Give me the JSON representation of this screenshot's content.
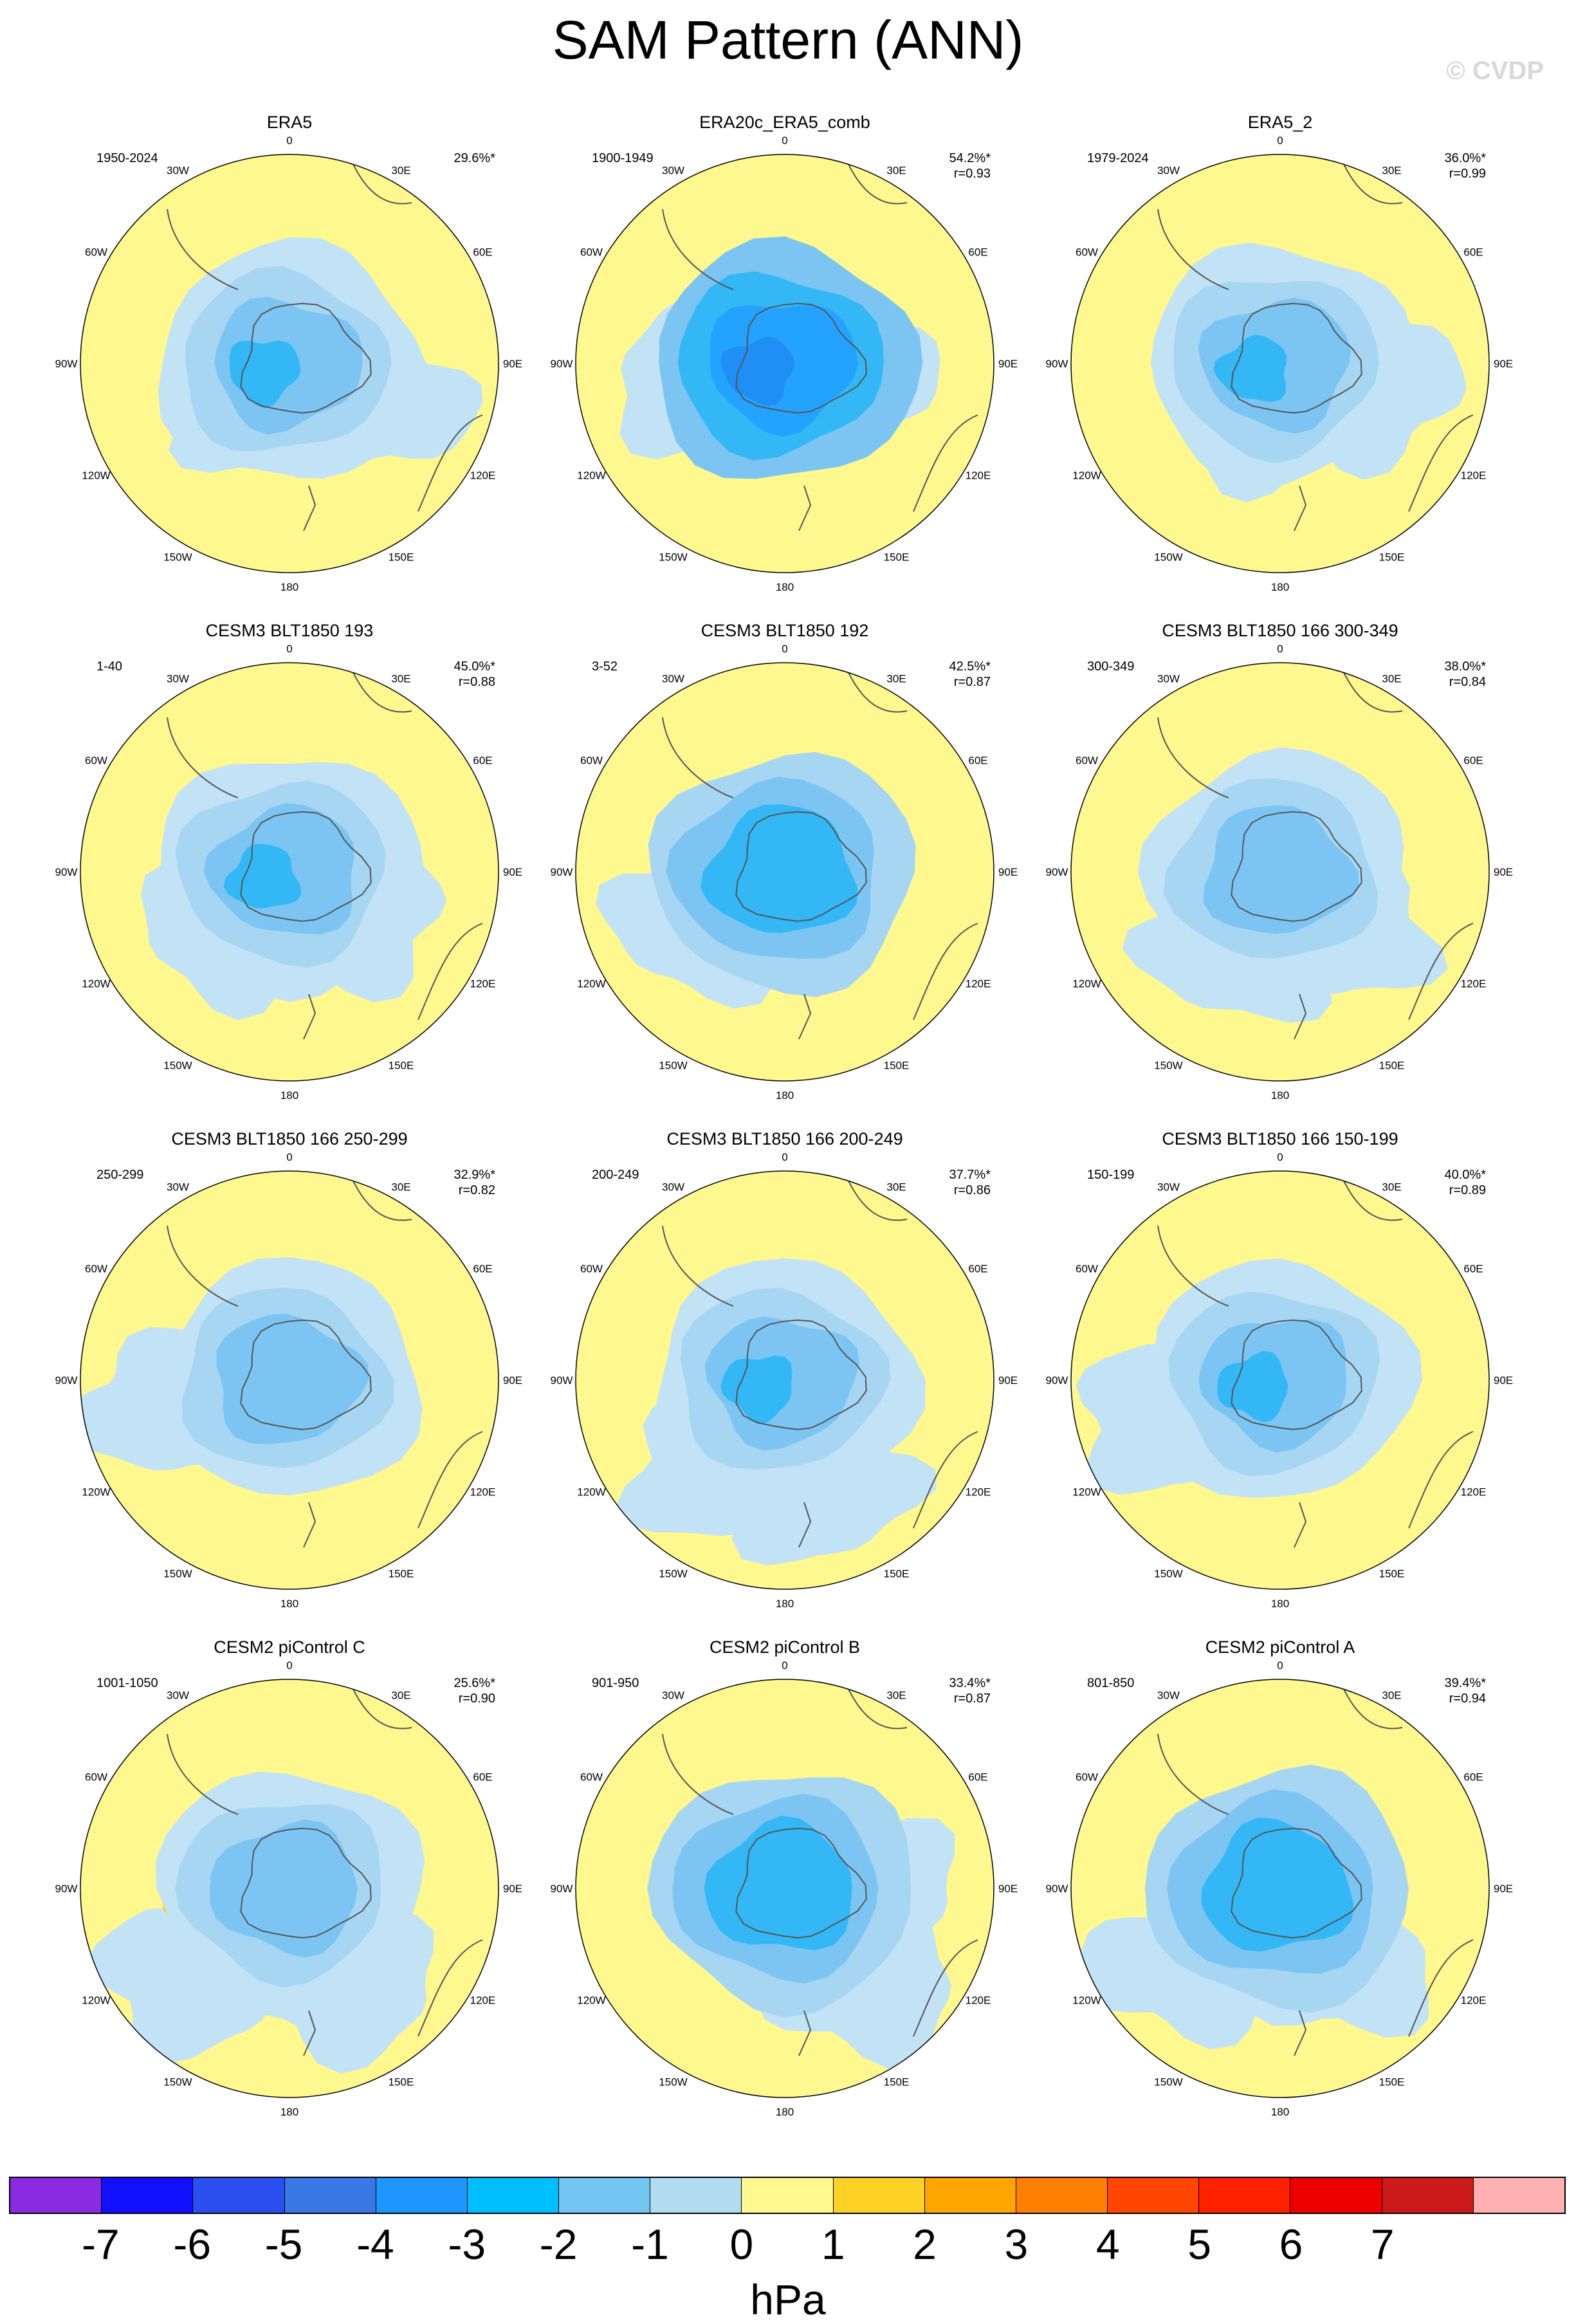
{
  "title": "SAM Pattern (ANN)",
  "watermark": "© CVDP",
  "lon_labels": [
    "0",
    "30E",
    "60E",
    "90E",
    "120E",
    "150E",
    "180",
    "150W",
    "120W",
    "90W",
    "60W",
    "30W"
  ],
  "panels": [
    {
      "title": "ERA5",
      "years": "1950-2024",
      "pct": "29.6%*",
      "r": "",
      "core": "#7cc5f2",
      "mid": "#a6d6f2",
      "outer": "#c2e2f5",
      "deep": "#33b8f5",
      "pos": [
        [
          -95,
          -30,
          1
        ]
      ],
      "neg_rim": [
        [
          -20,
          -75,
          "#c2e2f5"
        ],
        [
          130,
          -60,
          "#c2e2f5"
        ]
      ]
    },
    {
      "title": "ERA20c_ERA5_comb",
      "years": "1900-1949",
      "pct": "54.2%*",
      "r": "r=0.93",
      "core": "#23a3ff",
      "mid": "#33b8f5",
      "outer": "#7cc5f2",
      "deep": "#1f8ff5",
      "pos": [],
      "neg_rim": [
        [
          -120,
          -30,
          "#c2e2f5"
        ],
        [
          80,
          -20,
          "#c2e2f5"
        ]
      ]
    },
    {
      "title": "ERA5_2",
      "years": "1979-2024",
      "pct": "36.0%*",
      "r": "r=0.99",
      "core": "#7cc5f2",
      "mid": "#a6d6f2",
      "outer": "#c2e2f5",
      "deep": "#33b8f5",
      "pos": [
        [
          -95,
          -30,
          1
        ]
      ],
      "neg_rim": [
        [
          -10,
          -80,
          "#c2e2f5"
        ],
        [
          130,
          -40,
          "#c2e2f5"
        ]
      ]
    },
    {
      "title": "CESM3 BLT1850 193",
      "years": "1-40",
      "pct": "45.0%*",
      "r": "r=0.88",
      "core": "#7cc5f2",
      "mid": "#a6d6f2",
      "outer": "#c2e2f5",
      "deep": "#33b8f5",
      "pos": [
        [
          -100,
          -20,
          1
        ],
        [
          90,
          10,
          1
        ]
      ],
      "neg_rim": [
        [
          -80,
          -90,
          "#c2e2f5"
        ],
        [
          90,
          -70,
          "#c2e2f5"
        ]
      ]
    },
    {
      "title": "CESM3 BLT1850 192",
      "years": "3-52",
      "pct": "42.5%*",
      "r": "r=0.87",
      "core": "#33b8f5",
      "mid": "#7cc5f2",
      "outer": "#a6d6f2",
      "deep": "#33b8f5",
      "pos": [],
      "neg_rim": [
        [
          -120,
          -80,
          "#c2e2f5"
        ]
      ]
    },
    {
      "title": "CESM3 BLT1850 166 300-349",
      "years": "300-349",
      "pct": "38.0%*",
      "r": "r=0.84",
      "core": "#7cc5f2",
      "mid": "#a6d6f2",
      "outer": "#c2e2f5",
      "deep": "#7cc5f2",
      "pos": [
        [
          80,
          15,
          1
        ]
      ],
      "neg_rim": [
        [
          -60,
          -120,
          "#c2e2f5"
        ],
        [
          90,
          -90,
          "#c2e2f5"
        ]
      ]
    },
    {
      "title": "CESM3 BLT1850 166 250-299",
      "years": "250-299",
      "pct": "32.9%*",
      "r": "r=0.82",
      "core": "#7cc5f2",
      "mid": "#a6d6f2",
      "outer": "#c2e2f5",
      "deep": "#7cc5f2",
      "pos": [],
      "neg_rim": [
        [
          -180,
          -40,
          "#c2e2f5"
        ]
      ]
    },
    {
      "title": "CESM3 BLT1850 166 200-249",
      "years": "200-249",
      "pct": "37.7%*",
      "r": "r=0.86",
      "core": "#7cc5f2",
      "mid": "#a6d6f2",
      "outer": "#c2e2f5",
      "deep": "#33b8f5",
      "pos": [
        [
          85,
          15,
          1
        ]
      ],
      "neg_rim": [
        [
          -100,
          -140,
          "#c2e2f5"
        ],
        [
          50,
          -170,
          "#c2e2f5"
        ]
      ]
    },
    {
      "title": "CESM3 BLT1850 166 150-199",
      "years": "150-199",
      "pct": "40.0%*",
      "r": "r=0.89",
      "core": "#7cc5f2",
      "mid": "#a6d6f2",
      "outer": "#c2e2f5",
      "deep": "#33b8f5",
      "pos": [
        [
          95,
          10,
          1
        ]
      ],
      "neg_rim": [
        [
          -170,
          -60,
          "#c2e2f5"
        ]
      ]
    },
    {
      "title": "CESM2 piControl C",
      "years": "1001-1050",
      "pct": "25.6%*",
      "r": "r=0.90",
      "core": "#7cc5f2",
      "mid": "#a6d6f2",
      "outer": "#c2e2f5",
      "deep": "#7cc5f2",
      "pos": [
        [
          -140,
          -30,
          2
        ],
        [
          -70,
          -80,
          2
        ],
        [
          50,
          -50,
          1
        ]
      ],
      "neg_rim": [
        [
          -150,
          -140,
          "#c2e2f5"
        ],
        [
          80,
          -150,
          "#c2e2f5"
        ]
      ]
    },
    {
      "title": "CESM2 piControl B",
      "years": "901-950",
      "pct": "33.4%*",
      "r": "r=0.87",
      "core": "#33b8f5",
      "mid": "#7cc5f2",
      "outer": "#a6d6f2",
      "deep": "#33b8f5",
      "pos": [
        [
          -130,
          -40,
          2
        ],
        [
          -20,
          -100,
          2
        ]
      ],
      "neg_rim": [
        [
          120,
          0,
          "#c2e2f5"
        ],
        [
          120,
          -150,
          "#c2e2f5"
        ]
      ]
    },
    {
      "title": "CESM2 piControl A",
      "years": "801-850",
      "pct": "39.4%*",
      "r": "r=0.94",
      "core": "#33b8f5",
      "mid": "#7cc5f2",
      "outer": "#a6d6f2",
      "deep": "#33b8f5",
      "pos": [
        [
          -20,
          -110,
          2
        ],
        [
          -20,
          130,
          1
        ]
      ],
      "neg_rim": [
        [
          -150,
          -120,
          "#c2e2f5"
        ],
        [
          90,
          -120,
          "#c2e2f5"
        ]
      ]
    }
  ],
  "colorbar": {
    "colors": [
      "#8a2be2",
      "#1010ff",
      "#2b4fee",
      "#3a78e6",
      "#1e96ff",
      "#00bfff",
      "#73c6f2",
      "#b2dcf2",
      "#fff88f",
      "#fdd225",
      "#ffa500",
      "#ff7f00",
      "#ff4500",
      "#ff2000",
      "#ee0000",
      "#cc1a1a",
      "#ffb1b1"
    ],
    "labels": [
      "-7",
      "-6",
      "-5",
      "-4",
      "-3",
      "-2",
      "-1",
      "0",
      "1",
      "2",
      "3",
      "4",
      "5",
      "6",
      "7"
    ],
    "unit": "hPa"
  }
}
